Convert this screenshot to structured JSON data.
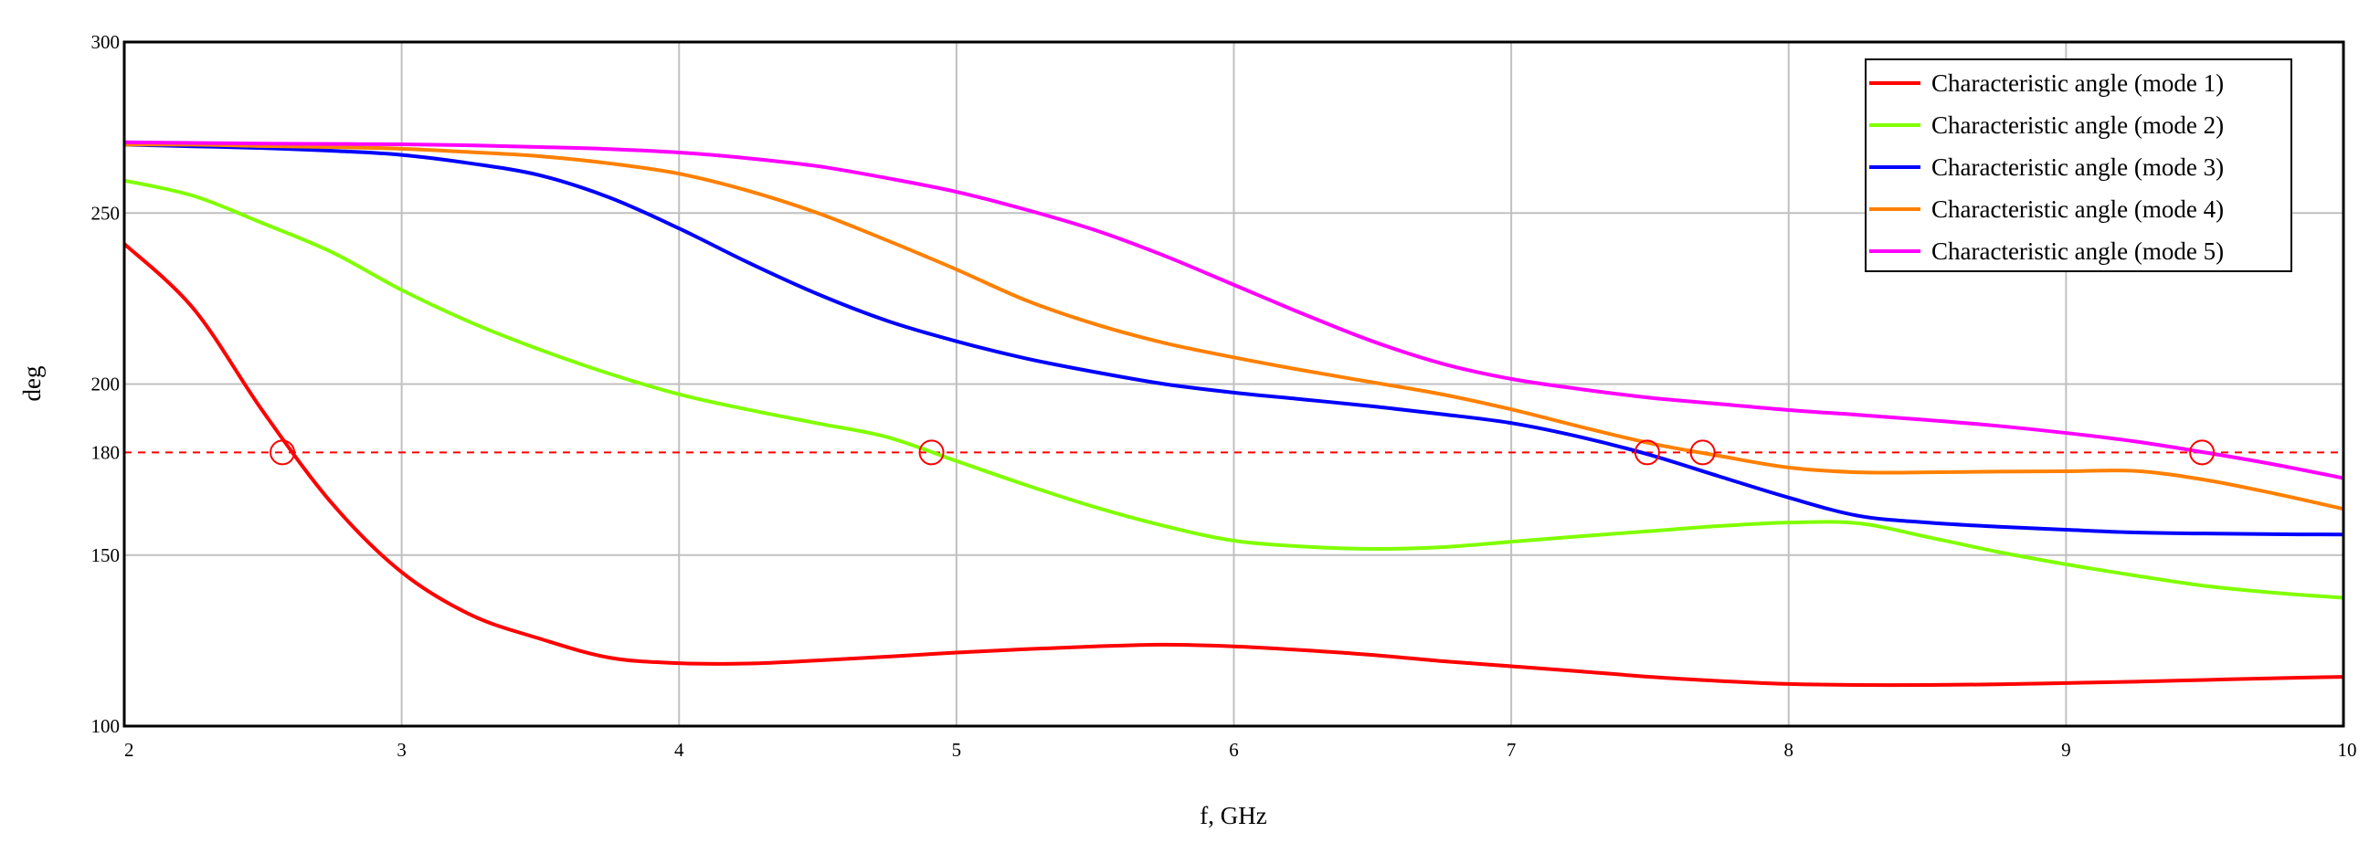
{
  "chart_data": {
    "type": "line",
    "title": "",
    "xlabel": "f, GHz",
    "ylabel": "deg",
    "xlim": [
      2,
      10
    ],
    "ylim": [
      100,
      300
    ],
    "x_ticks": [
      2,
      3,
      4,
      5,
      6,
      7,
      8,
      9,
      10
    ],
    "y_ticks": [
      100,
      150,
      180,
      200,
      250,
      300
    ],
    "grid": true,
    "legend_position": "upper right",
    "reference_line": {
      "y": 180,
      "style": "dashed",
      "color": "#ff0000"
    },
    "crossing_markers": {
      "y": 180,
      "x": [
        2.57,
        4.91,
        7.49,
        7.69,
        9.49
      ],
      "shape": "circle",
      "color": "#ff0000"
    },
    "x": [
      2,
      2.25,
      2.5,
      2.75,
      3,
      3.25,
      3.5,
      3.75,
      4,
      4.25,
      4.5,
      4.75,
      5,
      5.25,
      5.5,
      5.75,
      6,
      6.25,
      6.5,
      6.75,
      7,
      7.25,
      7.5,
      7.75,
      8,
      8.25,
      8.5,
      8.75,
      9,
      9.25,
      9.5,
      9.75,
      10
    ],
    "series": [
      {
        "name": "Characteristic angle (mode 1)",
        "color": "#ff0000",
        "values": [
          241,
          222,
          192,
          165,
          145,
          132.5,
          125.5,
          120,
          118.4,
          118.3,
          119.2,
          120.3,
          121.5,
          122.5,
          123.3,
          123.8,
          123.3,
          122.2,
          120.8,
          119,
          117.5,
          116,
          114.4,
          113.2,
          112.3,
          112,
          112,
          112.2,
          112.6,
          113,
          113.5,
          114,
          114.4
        ]
      },
      {
        "name": "Characteristic angle (mode 2)",
        "color": "#80ff00",
        "values": [
          259.5,
          255,
          247,
          238.5,
          227.5,
          218,
          210,
          203,
          197,
          192.5,
          188.5,
          184.5,
          177.5,
          170.5,
          164,
          158.5,
          154.2,
          152.5,
          151.8,
          152.3,
          153.9,
          155.5,
          157,
          158.5,
          159.5,
          159.3,
          155.3,
          151,
          147.3,
          144,
          141,
          139,
          137.5
        ]
      },
      {
        "name": "Characteristic angle (mode 3)",
        "color": "#0000ff",
        "values": [
          270,
          269.5,
          269,
          268.2,
          267,
          264.5,
          261,
          254.5,
          245.5,
          235.5,
          226.3,
          218.5,
          212.5,
          207.5,
          203.5,
          200,
          197.5,
          195.5,
          193.5,
          191.2,
          188.6,
          184.5,
          179.3,
          173,
          166.8,
          161.5,
          159.5,
          158.3,
          157.4,
          156.6,
          156.3,
          156.1,
          156
        ]
      },
      {
        "name": "Characteristic angle (mode 4)",
        "color": "#ff8000",
        "values": [
          270,
          270,
          269.6,
          269.3,
          268.8,
          267.8,
          266.6,
          264.5,
          261.5,
          256.5,
          250,
          242,
          233.5,
          224.5,
          217.5,
          212,
          207.8,
          204,
          200.5,
          197,
          192.6,
          187.5,
          182.7,
          179,
          175.6,
          174.2,
          174.2,
          174.4,
          174.5,
          174.6,
          172,
          168,
          163.5
        ]
      },
      {
        "name": "Characteristic angle (mode 5)",
        "color": "#ff00ff",
        "values": [
          270.7,
          270.5,
          270.3,
          270.2,
          270.1,
          269.8,
          269.3,
          268.7,
          267.7,
          266,
          263.7,
          260.2,
          256.2,
          251,
          245,
          237.5,
          229,
          220.5,
          212.5,
          206,
          201.5,
          198.5,
          196,
          194.2,
          192.4,
          191,
          189.5,
          187.8,
          185.7,
          183.2,
          180,
          176.5,
          172.5
        ]
      }
    ]
  },
  "labels": {
    "x_axis": "f, GHz",
    "y_axis": "deg"
  },
  "colors": {
    "grid": "#c0c0c0",
    "axis": "#000000",
    "reference": "#ff0000"
  }
}
